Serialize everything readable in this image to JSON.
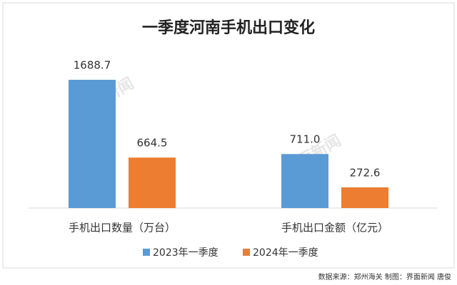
{
  "chart_data": {
    "type": "bar",
    "title": "一季度河南手机出口变化",
    "categories": [
      "手机出口数量（万台）",
      "手机出口金额（亿元）"
    ],
    "series": [
      {
        "name": "2023年一季度",
        "color": "#5b9bd5",
        "values": [
          1688.7,
          711.0
        ],
        "value_labels": [
          "1688.7",
          "711.0"
        ]
      },
      {
        "name": "2024年一季度",
        "color": "#ed7d31",
        "values": [
          664.5,
          272.6
        ],
        "value_labels": [
          "664.5",
          "272.6"
        ]
      }
    ],
    "legend": "bottom",
    "watermark": "界面新闻",
    "source": "数据来源：郑州海关  制图：界面新闻 唐俊"
  }
}
